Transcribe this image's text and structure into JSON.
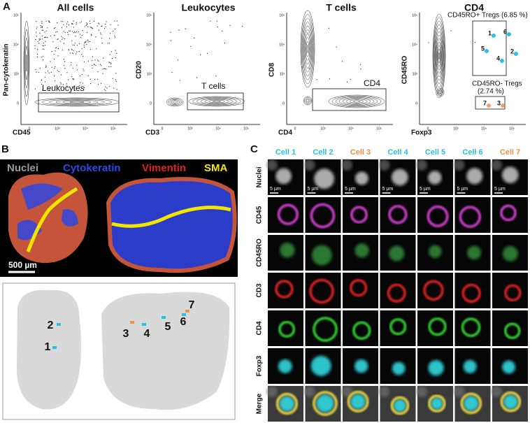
{
  "panel_a": {
    "letter": "A",
    "plots": [
      {
        "title": "All cells",
        "x_label": "CD45",
        "y_label": "Pan-cytokeratin",
        "x_ticks": [
          "0",
          "10³",
          "10⁴",
          "10⁵"
        ],
        "y_ticks": [
          "10⁵",
          "10⁴",
          "10³",
          "0"
        ],
        "gates": [
          {
            "label": "Leukocytes"
          }
        ]
      },
      {
        "title": "Leukocytes",
        "x_label": "CD3",
        "y_label": "CD20",
        "x_ticks": [
          "0",
          "10³",
          "10⁴",
          "10⁵"
        ],
        "y_ticks": [
          "10⁵",
          "10⁴",
          "10³",
          "0"
        ],
        "gates": [
          {
            "label": "T cells"
          }
        ]
      },
      {
        "title": "T cells",
        "x_label": "CD4",
        "y_label": "CD8",
        "x_ticks": [
          "0",
          "10³",
          "10⁴",
          "10⁵"
        ],
        "y_ticks": [
          "10⁵",
          "10⁴",
          "10³",
          "0"
        ],
        "gates": [
          {
            "label": "CD4"
          }
        ]
      },
      {
        "title": "CD4",
        "x_label": "Foxp3",
        "y_label": "CD45RO",
        "x_ticks": [
          "0",
          "10³",
          "10⁴",
          "10⁵"
        ],
        "y_ticks": [
          "10⁵",
          "10⁴",
          "10³",
          "0"
        ],
        "gates": [
          {
            "label": "CD45RO+  Tregs (6.85 %)",
            "cells": [
              "1",
              "6",
              "5",
              "2",
              "4"
            ]
          },
          {
            "label": "CD45RO-  Tregs",
            "sublabel": "(2.74 %)",
            "cells": [
              "7",
              "3"
            ]
          }
        ]
      }
    ]
  },
  "panel_b": {
    "letter": "B",
    "channels": [
      {
        "name": "Nuclei",
        "color": "#9a9a9a"
      },
      {
        "name": "Cytokeratin",
        "color": "#2f46e0"
      },
      {
        "name": "Vimentin",
        "color": "#e02020"
      },
      {
        "name": "SMA",
        "color": "#f2e600"
      }
    ],
    "scale_bar": "500 µm",
    "cells": [
      {
        "label": "1",
        "color": "#29c0e8"
      },
      {
        "label": "2",
        "color": "#29c0e8"
      },
      {
        "label": "3",
        "color": "#f09040"
      },
      {
        "label": "4",
        "color": "#29c0e8"
      },
      {
        "label": "5",
        "color": "#29c0e8"
      },
      {
        "label": "6",
        "color": "#29c0e8"
      },
      {
        "label": "7",
        "color": "#f09040"
      }
    ]
  },
  "panel_c": {
    "letter": "C",
    "cells": [
      {
        "label": "Cell 1",
        "color": "#29c0e8"
      },
      {
        "label": "Cell 2",
        "color": "#29c0e8"
      },
      {
        "label": "Cell 3",
        "color": "#f09040"
      },
      {
        "label": "Cell 4",
        "color": "#29c0e8"
      },
      {
        "label": "Cell 5",
        "color": "#29c0e8"
      },
      {
        "label": "Cell 6",
        "color": "#29c0e8"
      },
      {
        "label": "Cell 7",
        "color": "#f09040"
      }
    ],
    "rows": [
      "Nuclei",
      "CD45",
      "CD45RO",
      "CD3",
      "CD4",
      "Foxp3",
      "Merge"
    ],
    "scale_bar": "5 µm"
  }
}
